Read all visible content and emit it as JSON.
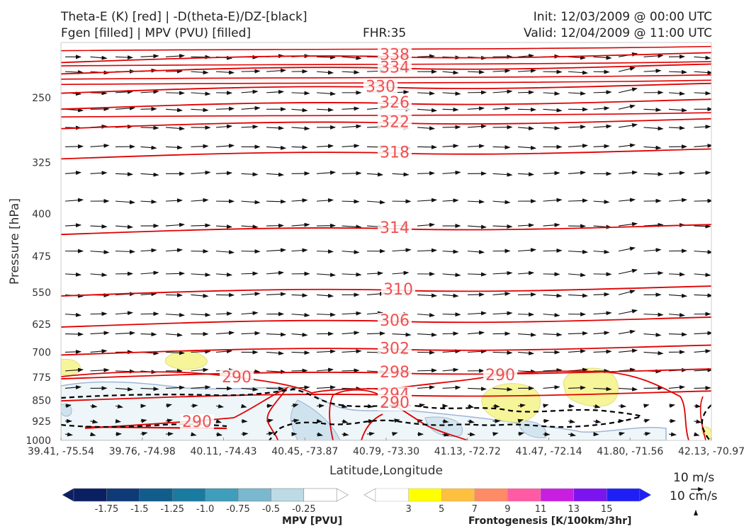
{
  "header": {
    "title_left_1": "Theta-E (K) [red] | -D(theta-E)/DZ-[black]",
    "title_left_2": "Fgen [filled] | MPV (PVU) [filled]",
    "fhr": "FHR:35",
    "init": "Init: 12/03/2009 @ 00:00 UTC",
    "valid": "Valid: 12/04/2009 @ 11:00 UTC"
  },
  "chart_data": {
    "type": "cross-section",
    "xlabel": "Latitude,Longitude",
    "ylabel": "Pressure [hPa]",
    "y_scale": "log",
    "y_range": [
      1000,
      200
    ],
    "y_ticks": [
      250,
      325,
      400,
      475,
      550,
      625,
      700,
      775,
      850,
      925,
      1000
    ],
    "x_ticks": [
      "39.41, -75.54",
      "39.76, -74.98",
      "40.11, -74.43",
      "40.45, -73.87",
      "40.79, -73.30",
      "41.13, -72.72",
      "41.47, -72.14",
      "41.80, -71.56",
      "42.13, -70.97"
    ],
    "theta_e_contours": [
      {
        "label": "338",
        "p": 212
      },
      {
        "label": "334",
        "p": 222
      },
      {
        "label": "330",
        "p": 240
      },
      {
        "label": "326",
        "p": 256
      },
      {
        "label": "322",
        "p": 277
      },
      {
        "label": "318",
        "p": 313
      },
      {
        "label": "314",
        "p": 425
      },
      {
        "label": "310",
        "p": 545
      },
      {
        "label": "306",
        "p": 618
      },
      {
        "label": "302",
        "p": 692
      },
      {
        "label": "298",
        "p": 762
      },
      {
        "label": "294",
        "p": 833
      },
      {
        "label": "290",
        "p": 902
      },
      {
        "label": "290",
        "p": 955
      },
      {
        "label": "290",
        "p": 970
      }
    ],
    "mpv_colorbar": {
      "title": "MPV [PVU]",
      "ticks": [
        "-1.75",
        "-1.5",
        "-1.25",
        "-1.0",
        "-0.75",
        "-0.5",
        "-0.25"
      ]
    },
    "fgen_colorbar": {
      "title": "Frontogenesis [K/100km/3hr]",
      "ticks": [
        "3",
        "5",
        "7",
        "9",
        "11",
        "13",
        "15"
      ]
    }
  },
  "scale": {
    "wind": "10 m/s",
    "vertical": "10 cm/s"
  },
  "colors": {
    "theta_e": "#e00000",
    "label": "#f05050",
    "mpv_fill": "#bcd8e5",
    "fgen_fill": "#f7f59a",
    "arrow": "#111111"
  }
}
